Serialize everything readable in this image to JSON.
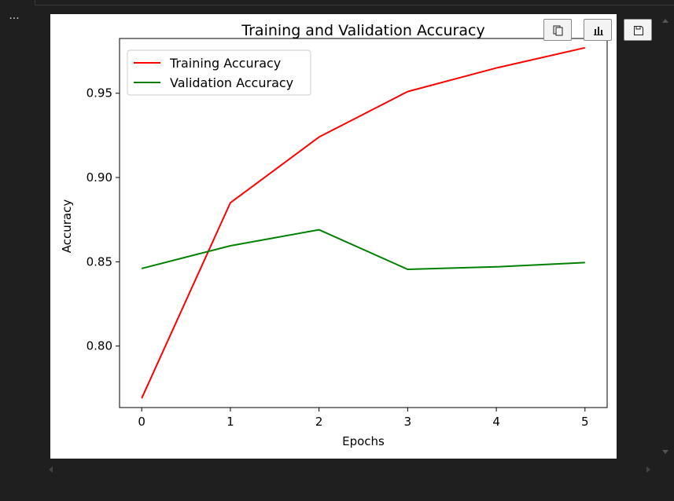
{
  "toolbar": {
    "more_label": "...",
    "buttons": [
      {
        "name": "copy-button",
        "icon": "copy-icon"
      },
      {
        "name": "chart-view-button",
        "icon": "bar-chart-icon"
      },
      {
        "name": "save-button",
        "icon": "save-icon"
      }
    ]
  },
  "colors": {
    "background": "#1f1f1f",
    "panel": "#ffffff",
    "training": "#ff0000",
    "validation": "#008000"
  },
  "chart_data": {
    "type": "line",
    "title": "Training and Validation Accuracy",
    "xlabel": "Epochs",
    "ylabel": "Accuracy",
    "x": [
      0,
      1,
      2,
      3,
      4,
      5
    ],
    "xticks": [
      "0",
      "1",
      "2",
      "3",
      "4",
      "5"
    ],
    "yticks": [
      "0.80",
      "0.85",
      "0.90",
      "0.95"
    ],
    "xlim": [
      -0.25,
      5.25
    ],
    "ylim": [
      0.7635,
      0.9825
    ],
    "grid": false,
    "legend_position": "upper-left",
    "series": [
      {
        "name": "Training Accuracy",
        "color": "#ff0000",
        "values": [
          0.769,
          0.885,
          0.924,
          0.951,
          0.965,
          0.977
        ]
      },
      {
        "name": "Validation Accuracy",
        "color": "#008000",
        "values": [
          0.846,
          0.8595,
          0.869,
          0.8455,
          0.847,
          0.8495
        ]
      }
    ]
  }
}
